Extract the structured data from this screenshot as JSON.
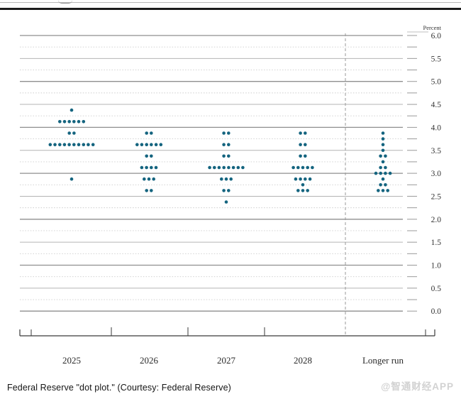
{
  "page": {
    "caption": "Federal Reserve \"dot plot.\" (Courtesy: Federal Reserve)",
    "watermark": "@智通财经APP"
  },
  "chart_data": {
    "type": "scatter",
    "subtype": "fomc-dot-plot",
    "title": "",
    "unit_label": "Percent",
    "xlabel": "",
    "ylabel": "Percent",
    "legend": "none",
    "grid": "on",
    "categories": [
      "2025",
      "2026",
      "2027",
      "2028",
      "Longer run"
    ],
    "y_axis": {
      "min": 0.0,
      "max": 6.0,
      "label_step": 0.5,
      "grid_step": 0.25,
      "tick_labels": [
        "6.0",
        "5.5",
        "5.0",
        "4.5",
        "4.0",
        "3.5",
        "3.0",
        "2.5",
        "2.0",
        "1.5",
        "1.0",
        "0.5",
        "0.0"
      ]
    },
    "dot_color": "#14647f",
    "columns": [
      {
        "label": "2025",
        "dots": [
          {
            "rate": 4.375,
            "count": 1
          },
          {
            "rate": 4.125,
            "count": 6
          },
          {
            "rate": 3.875,
            "count": 2
          },
          {
            "rate": 3.625,
            "count": 10
          },
          {
            "rate": 2.875,
            "count": 1
          }
        ]
      },
      {
        "label": "2026",
        "dots": [
          {
            "rate": 3.875,
            "count": 2
          },
          {
            "rate": 3.625,
            "count": 6
          },
          {
            "rate": 3.375,
            "count": 2
          },
          {
            "rate": 3.125,
            "count": 4
          },
          {
            "rate": 2.875,
            "count": 3
          },
          {
            "rate": 2.625,
            "count": 2
          }
        ]
      },
      {
        "label": "2027",
        "dots": [
          {
            "rate": 3.875,
            "count": 2
          },
          {
            "rate": 3.625,
            "count": 2
          },
          {
            "rate": 3.375,
            "count": 2
          },
          {
            "rate": 3.125,
            "count": 8
          },
          {
            "rate": 2.875,
            "count": 3
          },
          {
            "rate": 2.625,
            "count": 2
          },
          {
            "rate": 2.375,
            "count": 1
          }
        ]
      },
      {
        "label": "2028",
        "dots": [
          {
            "rate": 3.875,
            "count": 2
          },
          {
            "rate": 3.625,
            "count": 2
          },
          {
            "rate": 3.375,
            "count": 2
          },
          {
            "rate": 3.125,
            "count": 5
          },
          {
            "rate": 2.875,
            "count": 4
          },
          {
            "rate": 2.75,
            "count": 1
          },
          {
            "rate": 2.625,
            "count": 3
          }
        ]
      },
      {
        "label": "Longer run",
        "dots": [
          {
            "rate": 3.875,
            "count": 1
          },
          {
            "rate": 3.75,
            "count": 1
          },
          {
            "rate": 3.625,
            "count": 1
          },
          {
            "rate": 3.5,
            "count": 1
          },
          {
            "rate": 3.375,
            "count": 2
          },
          {
            "rate": 3.25,
            "count": 1
          },
          {
            "rate": 3.125,
            "count": 2
          },
          {
            "rate": 3.0,
            "count": 4
          },
          {
            "rate": 2.875,
            "count": 1
          },
          {
            "rate": 2.75,
            "count": 2
          },
          {
            "rate": 2.625,
            "count": 3
          }
        ]
      }
    ],
    "colors": {
      "major_gridline": "#8f8f8f",
      "half_gridline": "#b4b4b4",
      "quarter_gridline": "#cccccc",
      "axis": "#3a3a3a",
      "separator": "#9a9a9a",
      "label_text": "#333333"
    }
  }
}
